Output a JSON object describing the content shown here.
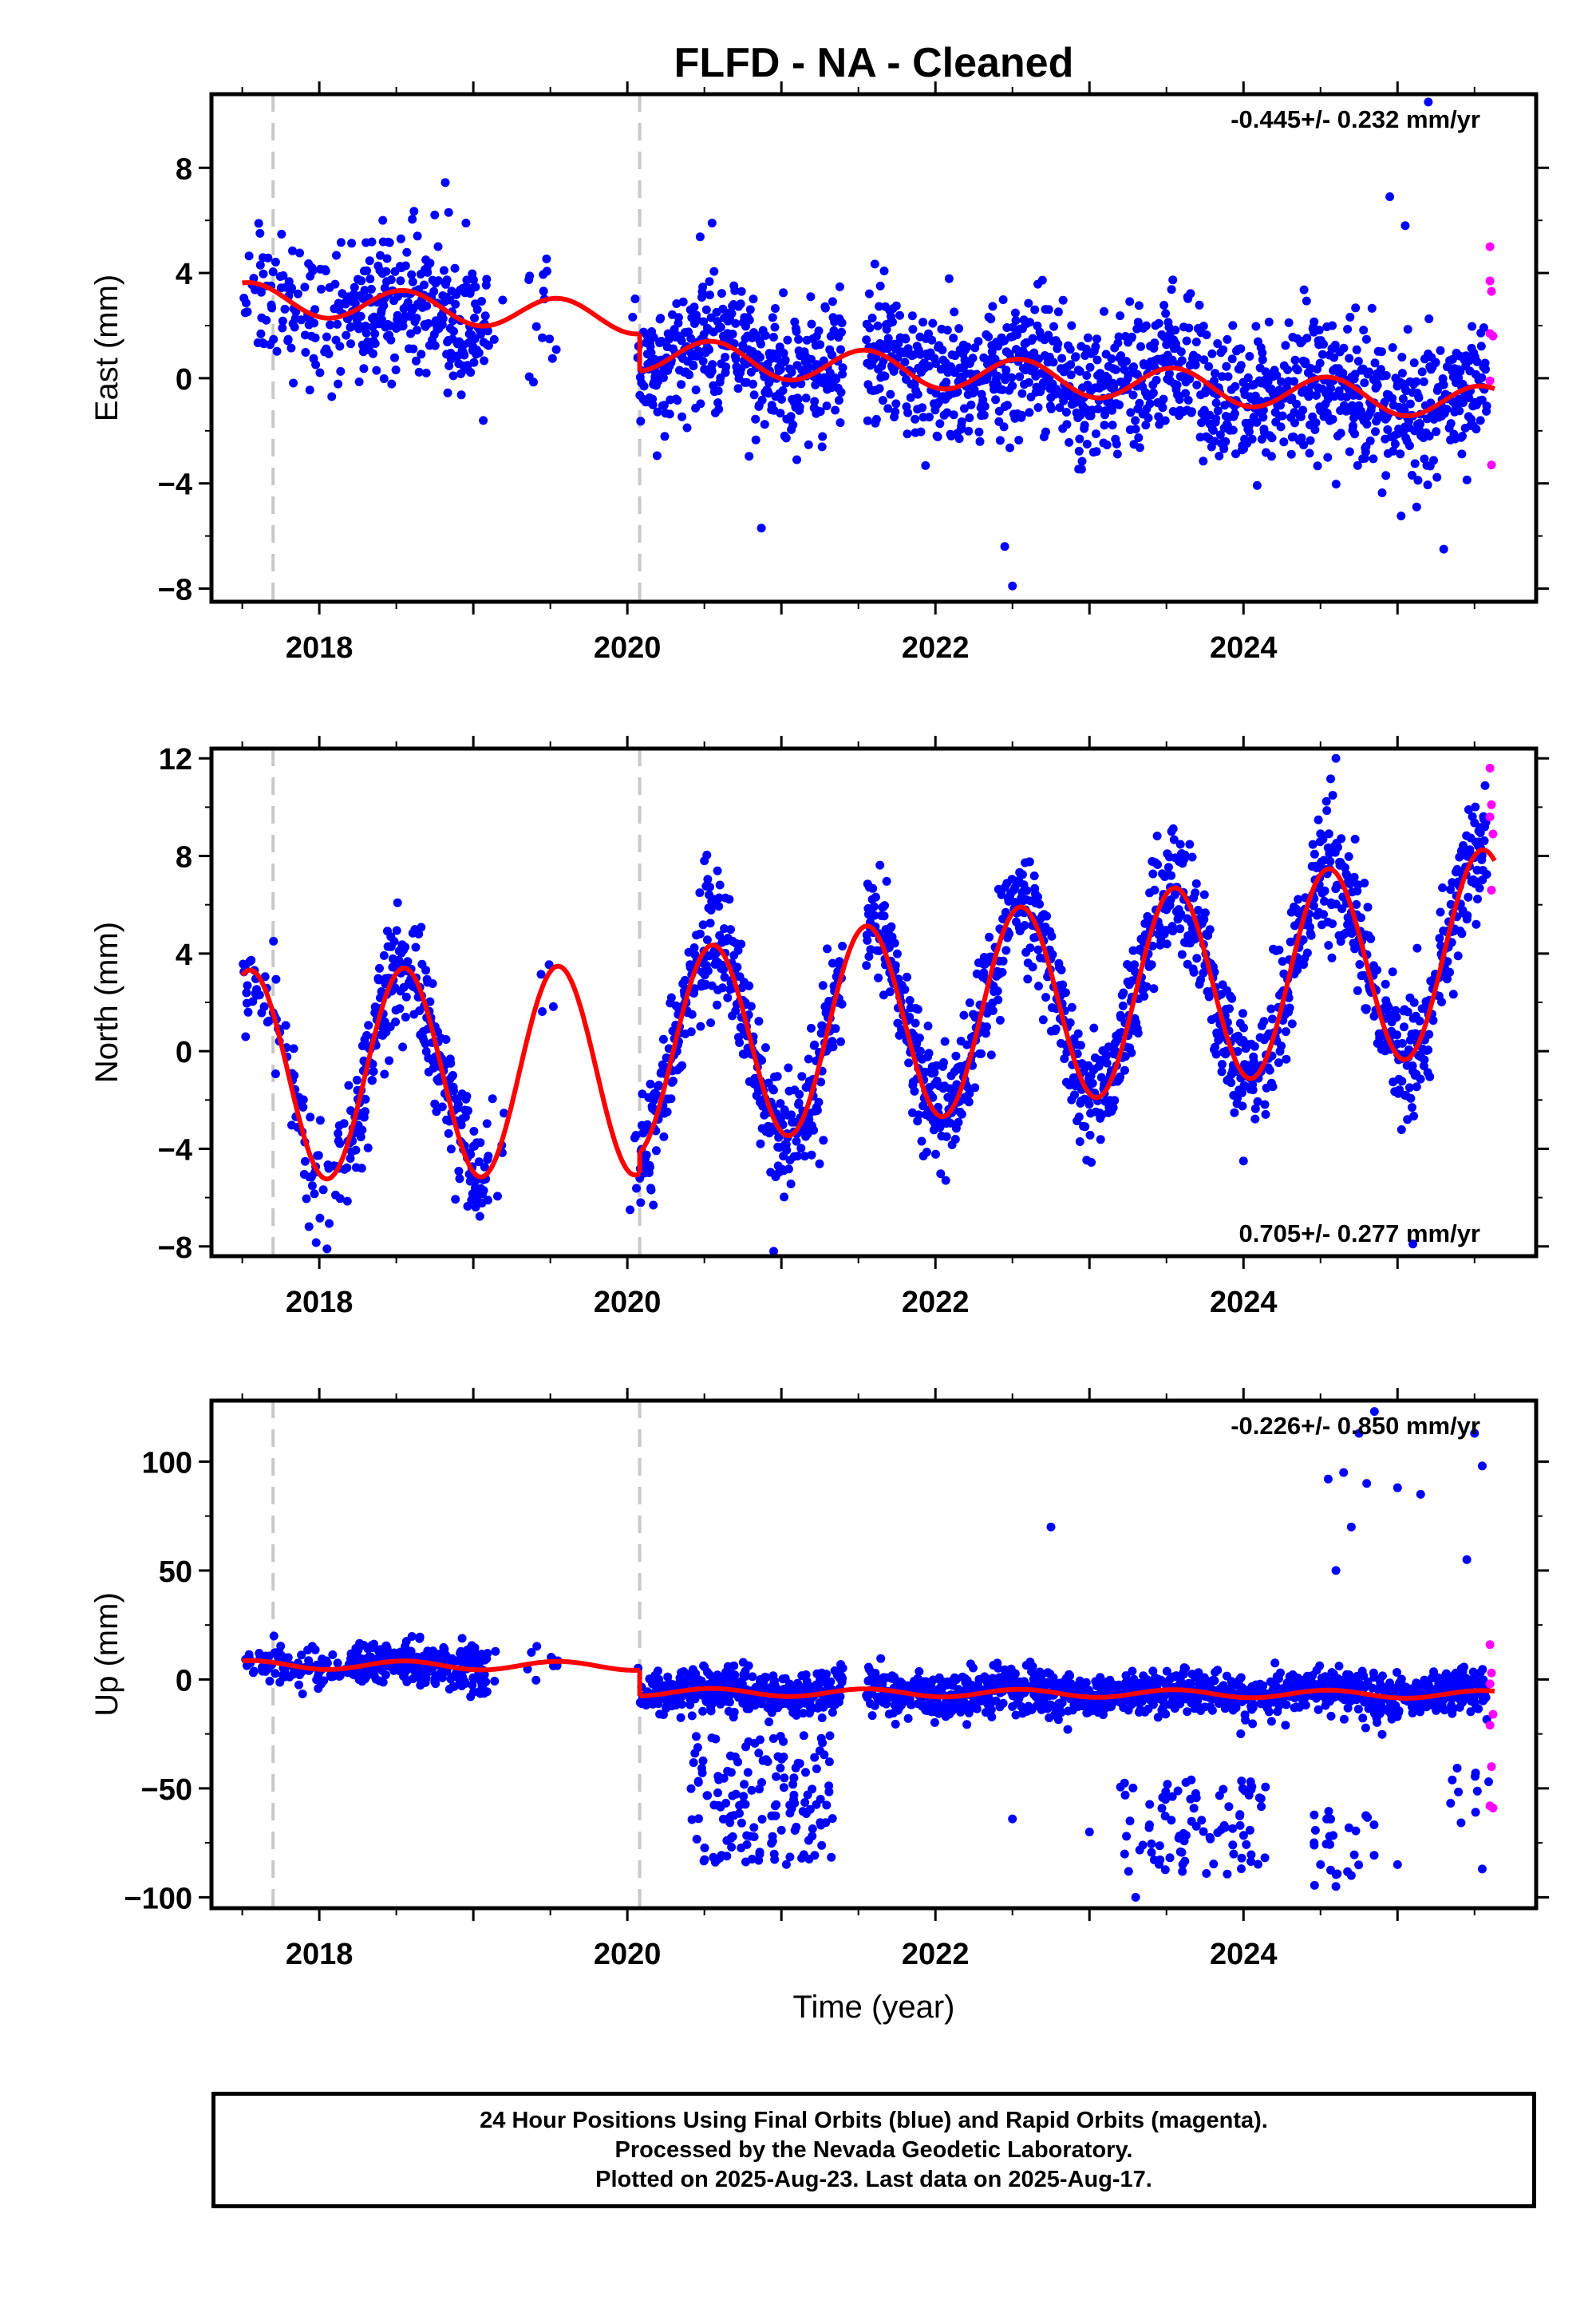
{
  "title": "FLFD  - NA - Cleaned",
  "colors": {
    "final": "#0000ff",
    "rapid": "#ff00ff",
    "model": "#ff0000",
    "event": "#c8c8c8"
  },
  "chart_data": [
    {
      "type": "scatter",
      "panel": "east",
      "ylabel": "East (mm)",
      "xlim": [
        2017.3,
        2025.9
      ],
      "ylim": [
        -8.5,
        10.8
      ],
      "yticks": [
        -8,
        -4,
        0,
        4,
        8
      ],
      "ytick_labels": [
        "−8",
        "−4",
        "0",
        "4",
        "8"
      ],
      "xticks": [
        2018,
        2020,
        2022,
        2024
      ],
      "xtick_labels": [
        "2018",
        "2020",
        "2022",
        "2024"
      ],
      "event_lines": [
        2017.7,
        2020.08
      ],
      "velocity": "-0.445+/- 0.232 mm/yr",
      "velocity_position": "top-right",
      "model": {
        "segments": [
          {
            "start": 2017.5,
            "end": 2020.08,
            "intercept": 2.0,
            "rate": -0.3,
            "amp": 0.6
          },
          {
            "start": 2020.08,
            "end": 2025.63,
            "intercept": 0.6,
            "rate": -0.34,
            "amp": 0.65
          }
        ]
      },
      "scatter": {
        "spread": 1.3,
        "seed": 11
      },
      "outliers": [
        [
          2025.2,
          10.5
        ],
        [
          2024.95,
          6.9
        ],
        [
          2025.05,
          5.8
        ],
        [
          2020.55,
          5.9
        ],
        [
          2022.45,
          -6.4
        ],
        [
          2022.5,
          -7.9
        ],
        [
          2020.87,
          -5.7
        ],
        [
          2025.3,
          -6.5
        ]
      ],
      "rapid": [
        [
          2025.6,
          5.0
        ],
        [
          2025.6,
          3.7
        ],
        [
          2025.61,
          3.3
        ],
        [
          2025.6,
          1.7
        ],
        [
          2025.62,
          1.6
        ],
        [
          2025.6,
          -0.1
        ],
        [
          2025.61,
          -3.3
        ]
      ]
    },
    {
      "type": "scatter",
      "panel": "north",
      "ylabel": "North (mm)",
      "xlim": [
        2017.3,
        2025.9
      ],
      "ylim": [
        -8.4,
        12.4
      ],
      "yticks": [
        -8,
        -4,
        0,
        4,
        8,
        12
      ],
      "ytick_labels": [
        "−8",
        "−4",
        "0",
        "4",
        "8",
        "12"
      ],
      "xticks": [
        2018,
        2020,
        2022,
        2024
      ],
      "xtick_labels": [
        "2018",
        "2020",
        "2022",
        "2024"
      ],
      "event_lines": [
        2017.7,
        2020.08
      ],
      "velocity": "0.705+/- 0.277 mm/yr",
      "velocity_position": "bottom-right",
      "model": {
        "segments": [
          {
            "start": 2017.5,
            "end": 2020.08,
            "intercept": -0.7,
            "rate": 0.08,
            "amp": 4.3
          },
          {
            "start": 2020.08,
            "end": 2025.63,
            "intercept": 0.6,
            "rate": 0.78,
            "amp": 4.1
          }
        ]
      },
      "scatter": {
        "spread": 1.2,
        "seed": 23
      },
      "outliers": [
        [
          2024.6,
          12.0
        ],
        [
          2020.5,
          7.8
        ],
        [
          2018.05,
          -8.1
        ],
        [
          2020.95,
          -8.2
        ],
        [
          2025.1,
          -7.9
        ],
        [
          2024.0,
          -4.5
        ]
      ],
      "rapid": [
        [
          2025.6,
          11.6
        ],
        [
          2025.61,
          10.1
        ],
        [
          2025.6,
          9.6
        ],
        [
          2025.62,
          8.9
        ],
        [
          2025.61,
          6.6
        ]
      ]
    },
    {
      "type": "scatter",
      "panel": "up",
      "ylabel": "Up (mm)",
      "xlabel": "Time (year)",
      "xlim": [
        2017.3,
        2025.9
      ],
      "ylim": [
        -105,
        128
      ],
      "yticks": [
        -100,
        -50,
        0,
        50,
        100
      ],
      "ytick_labels": [
        "−100",
        "−50",
        "0",
        "50",
        "100"
      ],
      "xticks": [
        2018,
        2020,
        2022,
        2024
      ],
      "xtick_labels": [
        "2018",
        "2020",
        "2022",
        "2024"
      ],
      "event_lines": [
        2017.7,
        2020.08
      ],
      "velocity": "-0.226+/- 0.850 mm/yr",
      "velocity_position": "top-right",
      "model": {
        "segments": [
          {
            "start": 2017.5,
            "end": 2020.08,
            "intercept": 6.0,
            "rate": -0.2,
            "amp": 2.0
          },
          {
            "start": 2020.08,
            "end": 2025.63,
            "intercept": -6.0,
            "rate": -0.2,
            "amp": 1.8
          }
        ]
      },
      "scatter": {
        "spread": 5,
        "seed": 37
      },
      "outliers": [
        [
          2022.75,
          70
        ],
        [
          2024.55,
          92
        ],
        [
          2024.65,
          95
        ],
        [
          2024.75,
          113
        ],
        [
          2024.85,
          123
        ],
        [
          2024.8,
          90
        ],
        [
          2025.15,
          85
        ],
        [
          2025.0,
          88
        ],
        [
          2025.5,
          113
        ],
        [
          2025.55,
          98
        ],
        [
          2025.45,
          55
        ],
        [
          2024.7,
          70
        ],
        [
          2024.6,
          50
        ],
        [
          2024.5,
          -85
        ],
        [
          2024.6,
          -95
        ],
        [
          2024.7,
          -90
        ],
        [
          2023.3,
          -100
        ],
        [
          2025.0,
          -85
        ],
        [
          2025.55,
          -87
        ],
        [
          2020.6,
          -82
        ],
        [
          2022.5,
          -64
        ],
        [
          2023.0,
          -70
        ]
      ],
      "clusters": [
        {
          "x0": 2020.4,
          "x1": 2021.35,
          "y0": -85,
          "y1": -25,
          "n": 150
        },
        {
          "x0": 2023.2,
          "x1": 2024.15,
          "y0": -90,
          "y1": -45,
          "n": 90
        },
        {
          "x0": 2024.45,
          "x1": 2024.85,
          "y0": -96,
          "y1": -60,
          "n": 25
        },
        {
          "x0": 2025.3,
          "x1": 2025.6,
          "y0": -70,
          "y1": -40,
          "n": 10
        }
      ],
      "rapid": [
        [
          2025.6,
          16
        ],
        [
          2025.61,
          3
        ],
        [
          2025.6,
          -2
        ],
        [
          2025.62,
          -16
        ],
        [
          2025.6,
          -21
        ],
        [
          2025.61,
          -40
        ],
        [
          2025.6,
          -58
        ],
        [
          2025.62,
          -59
        ]
      ]
    }
  ],
  "footer": {
    "line1": "24 Hour Positions Using Final Orbits (blue) and Rapid Orbits (magenta).",
    "line2": "Processed by the Nevada Geodetic Laboratory.",
    "line3": "Plotted on 2025-Aug-23. Last data on 2025-Aug-17."
  }
}
